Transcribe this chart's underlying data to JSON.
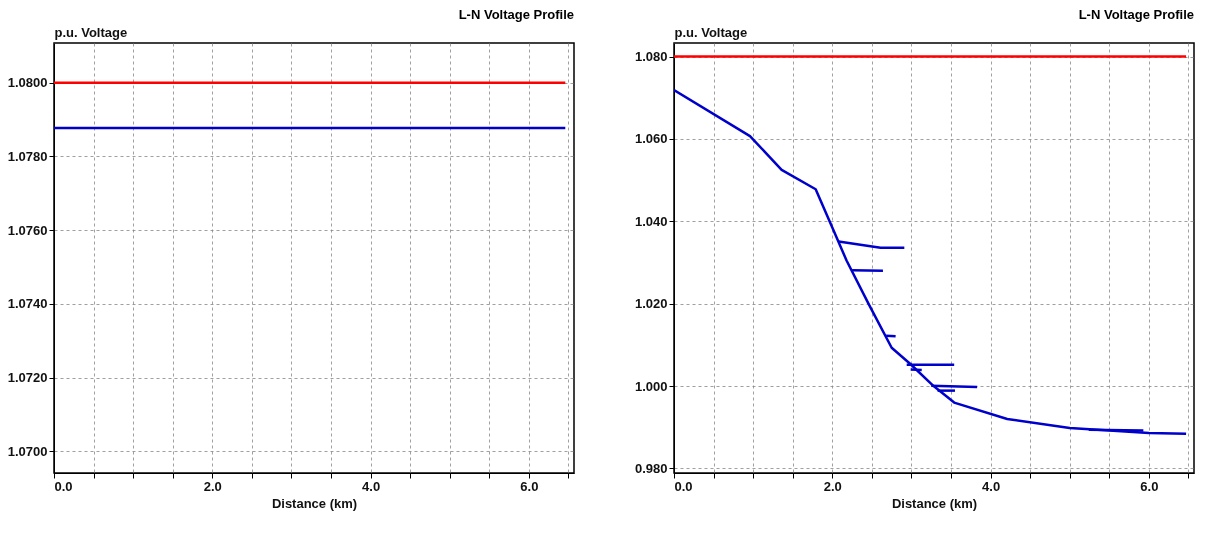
{
  "chart_data": [
    {
      "type": "line",
      "title": "L-N Voltage Profile",
      "ylabel": "p.u. Voltage",
      "xlabel": "Distance (km)",
      "xlim": [
        0,
        6.57
      ],
      "ylim": [
        1.06941,
        1.08108
      ],
      "xticks": [
        {
          "value": 0,
          "label": "0.0"
        },
        {
          "value": 0.5,
          "label": null
        },
        {
          "value": 1,
          "label": null
        },
        {
          "value": 1.5,
          "label": null
        },
        {
          "value": 2,
          "label": "2.0"
        },
        {
          "value": 2.5,
          "label": null
        },
        {
          "value": 3,
          "label": null
        },
        {
          "value": 3.5,
          "label": null
        },
        {
          "value": 4,
          "label": "4.0"
        },
        {
          "value": 4.5,
          "label": null
        },
        {
          "value": 5,
          "label": null
        },
        {
          "value": 5.5,
          "label": null
        },
        {
          "value": 6,
          "label": "6.0"
        },
        {
          "value": 6.5,
          "label": null
        }
      ],
      "yticks": [
        {
          "value": 1.07,
          "label": "1.0700"
        },
        {
          "value": 1.072,
          "label": "1.0720"
        },
        {
          "value": 1.074,
          "label": "1.0740"
        },
        {
          "value": 1.076,
          "label": "1.0760"
        },
        {
          "value": 1.078,
          "label": "1.0780"
        },
        {
          "value": 1.08,
          "label": "1.0800"
        }
      ],
      "grid": true,
      "legend": false,
      "series": [
        {
          "color": "#ff0000",
          "x": [
            0,
            6.46
          ],
          "values": [
            1.08,
            1.08
          ]
        },
        {
          "color": "#0000cc",
          "x": [
            0,
            6.46
          ],
          "values": [
            1.07877,
            1.07877
          ]
        }
      ]
    },
    {
      "type": "line",
      "title": "L-N Voltage Profile",
      "ylabel": "p.u. Voltage",
      "xlabel": "Distance (km)",
      "xlim": [
        0,
        6.57
      ],
      "ylim": [
        0.9789,
        1.0833
      ],
      "xticks": [
        {
          "value": 0,
          "label": "0.0"
        },
        {
          "value": 0.5,
          "label": null
        },
        {
          "value": 1,
          "label": null
        },
        {
          "value": 1.5,
          "label": null
        },
        {
          "value": 2,
          "label": "2.0"
        },
        {
          "value": 2.5,
          "label": null
        },
        {
          "value": 3,
          "label": null
        },
        {
          "value": 3.5,
          "label": null
        },
        {
          "value": 4,
          "label": "4.0"
        },
        {
          "value": 4.5,
          "label": null
        },
        {
          "value": 5,
          "label": null
        },
        {
          "value": 5.5,
          "label": null
        },
        {
          "value": 6,
          "label": "6.0"
        },
        {
          "value": 6.5,
          "label": null
        }
      ],
      "yticks": [
        {
          "value": 0.98,
          "label": "0.980"
        },
        {
          "value": 1.0,
          "label": "1.000"
        },
        {
          "value": 1.02,
          "label": "1.020"
        },
        {
          "value": 1.04,
          "label": "1.040"
        },
        {
          "value": 1.06,
          "label": "1.060"
        },
        {
          "value": 1.08,
          "label": "1.080"
        }
      ],
      "grid": true,
      "legend": false,
      "series": [
        {
          "color": "#ff0000",
          "x": [
            0,
            6.47
          ],
          "values": [
            1.08,
            1.08
          ]
        },
        {
          "color": "#0000cc",
          "x": [
            0,
            0.96,
            1.36,
            1.79,
            2.0,
            2.18,
            2.46,
            2.75,
            2.99,
            3.28,
            3.54,
            4.21,
            5.0,
            6.0,
            6.47
          ],
          "values": [
            1.0719,
            1.0607,
            1.0525,
            1.0478,
            1.0385,
            1.0305,
            1.0199,
            1.0093,
            1.0053,
            1.0,
            0.996,
            0.992,
            0.9898,
            0.9886,
            0.9884
          ]
        },
        {
          "color": "#0000cc",
          "x": [
            2.08,
            2.61,
            2.91
          ],
          "values": [
            1.0351,
            1.0336,
            1.0336
          ]
        },
        {
          "color": "#0000cc",
          "x": [
            2.25,
            2.64
          ],
          "values": [
            1.0281,
            1.028
          ]
        },
        {
          "color": "#0000cc",
          "x": [
            2.68,
            2.8
          ],
          "values": [
            1.0122,
            1.0121
          ]
        },
        {
          "color": "#0000cc",
          "x": [
            2.94,
            3.54
          ],
          "values": [
            1.0052,
            1.0052
          ]
        },
        {
          "color": "#0000cc",
          "x": [
            2.99,
            3.13
          ],
          "values": [
            1.004,
            1.0039
          ]
        },
        {
          "color": "#0000cc",
          "x": [
            3.25,
            3.83
          ],
          "values": [
            1.0001,
            0.9998
          ]
        },
        {
          "color": "#0000cc",
          "x": [
            3.33,
            3.55
          ],
          "values": [
            0.9989,
            0.9989
          ]
        },
        {
          "color": "#0000cc",
          "x": [
            5.24,
            5.93
          ],
          "values": [
            0.9894,
            0.9892
          ]
        }
      ]
    }
  ]
}
